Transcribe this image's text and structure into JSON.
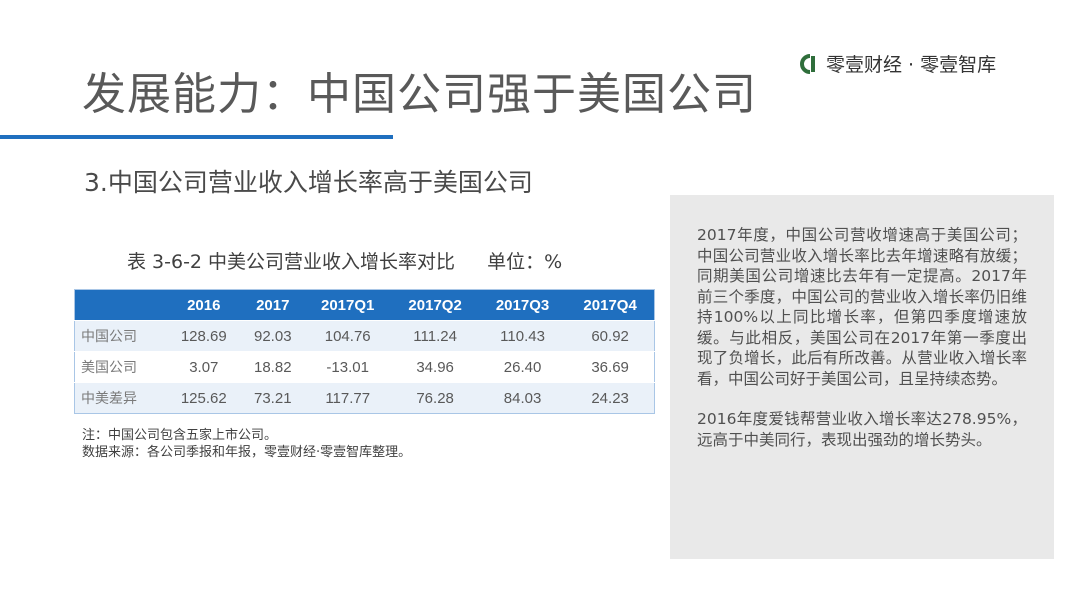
{
  "title": "发展能力：中国公司强于美国公司",
  "brand": {
    "name": "零壹财经 · 零壹智库",
    "accent_color": "#1f6fbf",
    "logo_color": "#2f6e3b"
  },
  "subtitle": "3.中国公司营业收入增长率高于美国公司",
  "table_caption": {
    "text": "表 3-6-2 中美公司营业收入增长率对比",
    "unit": "单位：%"
  },
  "chart_data": {
    "type": "table",
    "title": "表 3-6-2 中美公司营业收入增长率对比",
    "unit": "%",
    "columns": [
      "",
      "2016",
      "2017",
      "2017Q1",
      "2017Q2",
      "2017Q3",
      "2017Q4"
    ],
    "rows": [
      {
        "label": "中国公司",
        "values": [
          "128.69",
          "92.03",
          "104.76",
          "111.24",
          "110.43",
          "60.92"
        ]
      },
      {
        "label": "美国公司",
        "values": [
          "3.07",
          "18.82",
          "-13.01",
          "34.96",
          "26.40",
          "36.69"
        ]
      },
      {
        "label": "中美差异",
        "values": [
          "125.62",
          "73.21",
          "117.77",
          "76.28",
          "84.03",
          "24.23"
        ]
      }
    ]
  },
  "notes": [
    "注：中国公司包含五家上市公司。",
    "数据来源：各公司季报和年报，零壹财经·零壹智库整理。"
  ],
  "side_panel": {
    "paragraphs": [
      "2017年度，中国公司营收增速高于美国公司；中国公司营业收入增长率比去年增速略有放缓；同期美国公司增速比去年有一定提高。2017年前三个季度，中国公司的营业收入增长率仍旧维持100%以上同比增长率，但第四季度增速放缓。与此相反，美国公司在2017年第一季度出现了负增长，此后有所改善。从营业收入增长率看，中国公司好于美国公司，且呈持续态势。",
      "2016年度爱钱帮营业收入增长率达278.95%，远高于中美同行，表现出强劲的增长势头。"
    ]
  }
}
